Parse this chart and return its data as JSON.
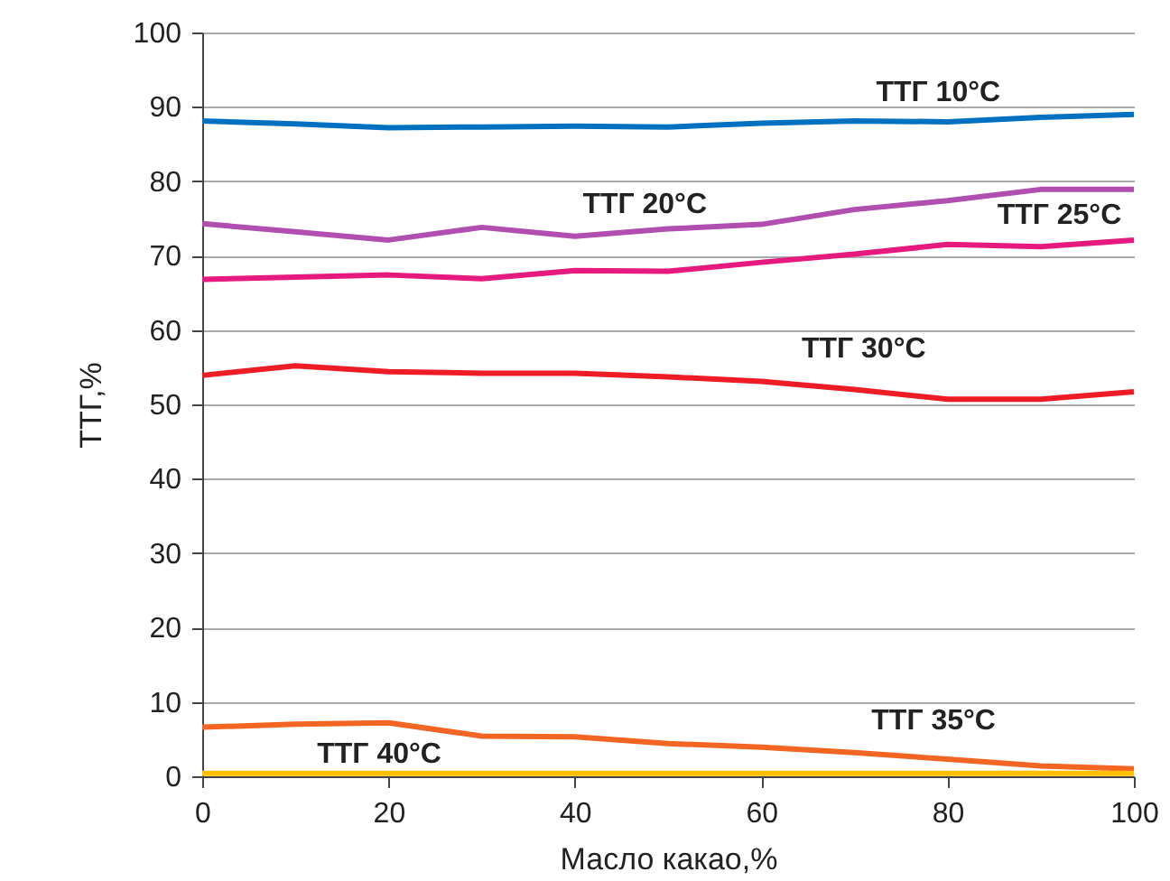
{
  "chart_data": {
    "type": "line",
    "xlabel": "Масло какао,%",
    "ylabel": "ТТГ,%",
    "x": [
      0,
      10,
      20,
      30,
      40,
      50,
      60,
      70,
      80,
      90,
      100
    ],
    "series": [
      {
        "name": "ТТГ 10°C",
        "color": "#0070c0",
        "values": [
          88.1,
          87.7,
          87.2,
          87.3,
          87.4,
          87.3,
          87.8,
          88.1,
          88.0,
          88.6,
          89.0
        ]
      },
      {
        "name": "ТТГ 20°C",
        "color": "#b04fb0",
        "values": [
          74.3,
          73.2,
          72.1,
          73.8,
          72.6,
          73.6,
          74.2,
          76.2,
          77.4,
          78.9,
          78.9
        ]
      },
      {
        "name": "ТТГ 25°C",
        "color": "#e6197f",
        "values": [
          66.8,
          67.1,
          67.4,
          66.9,
          68.0,
          67.9,
          69.1,
          70.2,
          71.5,
          71.2,
          72.1
        ]
      },
      {
        "name": "ТТГ 30°C",
        "color": "#ee1c25",
        "values": [
          53.9,
          55.2,
          54.4,
          54.2,
          54.2,
          53.7,
          53.1,
          52.0,
          50.7,
          50.7,
          51.7
        ]
      },
      {
        "name": "ТТГ 35°C",
        "color": "#f26522",
        "values": [
          6.6,
          7.0,
          7.2,
          5.4,
          5.3,
          4.4,
          3.9,
          3.2,
          2.3,
          1.4,
          1.0
        ]
      },
      {
        "name": "ТТГ 40°C",
        "color": "#ffc000",
        "values": [
          0.4,
          0.4,
          0.4,
          0.4,
          0.4,
          0.4,
          0.4,
          0.4,
          0.4,
          0.4,
          0.4
        ]
      }
    ],
    "xlim": [
      0,
      100
    ],
    "xticks": [
      0,
      20,
      40,
      60,
      80,
      100
    ],
    "ylim": [
      0,
      100
    ],
    "yticks": [
      0,
      10,
      20,
      30,
      40,
      50,
      60,
      70,
      80,
      90,
      100
    ],
    "grid": "y",
    "marker": "none",
    "line_style": "solid"
  }
}
